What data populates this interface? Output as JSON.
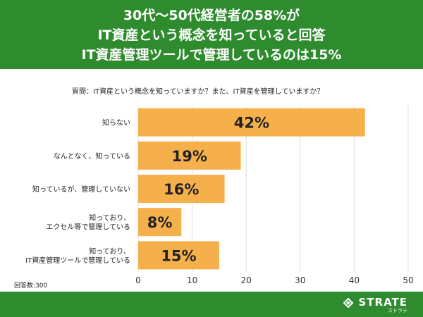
{
  "header": {
    "lines": [
      "30代〜50代経営者の58%が",
      "IT資産という概念を知っていると回答",
      "IT資産管理ツールで管理しているのは15%"
    ]
  },
  "question": "質問：IT資産という概念を知っていますか？また、IT資産を管理していますか？",
  "respondents": "回答数:300",
  "brand": {
    "name": "STRATE",
    "sub": "ストラテ"
  },
  "colors": {
    "header_bg": "#2e8b2e",
    "bar": "#f5b04c",
    "grid": "#dddddd"
  },
  "chart_data": {
    "type": "bar",
    "orientation": "horizontal",
    "categories": [
      "知らない",
      "なんとなく、知っている",
      "知っているが、管理していない",
      "知っており、\nエクセル等で管理している",
      "知っており、\nIT資産管理ツールで管理している"
    ],
    "values": [
      42,
      19,
      16,
      8,
      15
    ],
    "data_labels": [
      "42%",
      "19%",
      "16%",
      "8%",
      "15%"
    ],
    "xlim": [
      0,
      50
    ],
    "xticks": [
      0,
      10,
      20,
      30,
      40,
      50
    ],
    "grid": true
  }
}
